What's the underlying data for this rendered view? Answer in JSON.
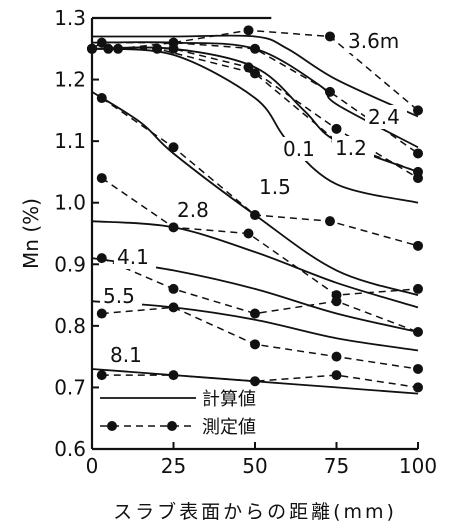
{
  "chart_data": {
    "type": "line",
    "title": "",
    "xlabel": "スラブ表面からの距離(mm)",
    "ylabel": "Mn (%)",
    "xlim": [
      0,
      100
    ],
    "ylim": [
      0.6,
      1.3
    ],
    "x_ticks": [
      "0",
      "25",
      "50",
      "75",
      "100"
    ],
    "y_ticks": [
      "0.6",
      "0.7",
      "0.8",
      "0.9",
      "1.0",
      "1.1",
      "1.2",
      "1.3"
    ],
    "grid": false,
    "legend_position": "bottom-left",
    "legend": [
      {
        "label": "計算値",
        "style": "solid"
      },
      {
        "label": "測定値",
        "style": "dashed-marker"
      }
    ],
    "curve_labels": [
      "3.6m",
      "2.4",
      "1.2",
      "0.1",
      "1.5",
      "2.8",
      "4.1",
      "5.5",
      "8.1"
    ],
    "series": [
      {
        "label": "0.1",
        "kind": "calculated",
        "x": [
          0,
          25,
          50,
          60,
          75,
          100
        ],
        "y": [
          1.25,
          1.24,
          1.17,
          1.1,
          1.03,
          1.0
        ]
      },
      {
        "label": "1.2",
        "kind": "calculated",
        "x": [
          0,
          25,
          50,
          65,
          75,
          100
        ],
        "y": [
          1.25,
          1.25,
          1.22,
          1.15,
          1.1,
          1.05
        ]
      },
      {
        "label": "2.4",
        "kind": "calculated",
        "x": [
          0,
          25,
          50,
          70,
          75,
          100
        ],
        "y": [
          1.26,
          1.26,
          1.25,
          1.19,
          1.16,
          1.09
        ]
      },
      {
        "label": "3.6m",
        "kind": "calculated",
        "x": [
          0,
          25,
          50,
          60,
          75,
          100
        ],
        "y": [
          1.27,
          1.27,
          1.27,
          1.25,
          1.2,
          1.14
        ]
      },
      {
        "label": "1.5",
        "kind": "calculated",
        "x": [
          0,
          15,
          25,
          50,
          75,
          100
        ],
        "y": [
          1.18,
          1.13,
          1.08,
          0.98,
          0.89,
          0.85
        ]
      },
      {
        "label": "2.8",
        "kind": "calculated",
        "x": [
          0,
          25,
          50,
          75,
          100
        ],
        "y": [
          0.97,
          0.96,
          0.92,
          0.87,
          0.83
        ]
      },
      {
        "label": "4.1",
        "kind": "calculated",
        "x": [
          0,
          25,
          50,
          75,
          100
        ],
        "y": [
          0.91,
          0.89,
          0.86,
          0.82,
          0.79
        ]
      },
      {
        "label": "5.5",
        "kind": "calculated",
        "x": [
          0,
          25,
          50,
          75,
          100
        ],
        "y": [
          0.84,
          0.83,
          0.81,
          0.78,
          0.76
        ]
      },
      {
        "label": "8.1",
        "kind": "calculated",
        "x": [
          0,
          25,
          50,
          75,
          100
        ],
        "y": [
          0.73,
          0.72,
          0.71,
          0.7,
          0.69
        ]
      },
      {
        "label": "3.6m",
        "kind": "measured",
        "x": [
          0,
          3,
          25,
          48,
          73,
          100
        ],
        "y": [
          1.25,
          1.26,
          1.26,
          1.28,
          1.27,
          1.15
        ]
      },
      {
        "label": "2.4",
        "kind": "measured",
        "x": [
          0,
          8,
          25,
          50,
          73,
          100
        ],
        "y": [
          1.25,
          1.25,
          1.26,
          1.25,
          1.18,
          1.08
        ]
      },
      {
        "label": "1.2",
        "kind": "measured",
        "x": [
          0,
          5,
          25,
          48,
          75,
          100
        ],
        "y": [
          1.25,
          1.25,
          1.25,
          1.22,
          1.12,
          1.04
        ]
      },
      {
        "label": "0.1",
        "kind": "measured",
        "x": [
          0,
          20,
          50,
          75,
          100
        ],
        "y": [
          1.25,
          1.25,
          1.21,
          1.1,
          1.05
        ]
      },
      {
        "label": "1.5",
        "kind": "measured",
        "x": [
          3,
          25,
          50,
          73,
          100
        ],
        "y": [
          1.17,
          1.09,
          0.98,
          0.97,
          0.93
        ]
      },
      {
        "label": "2.8",
        "kind": "measured",
        "x": [
          3,
          25,
          48,
          75,
          100
        ],
        "y": [
          1.04,
          0.96,
          0.95,
          0.85,
          0.86
        ]
      },
      {
        "label": "4.1",
        "kind": "measured",
        "x": [
          3,
          25,
          50,
          75,
          100
        ],
        "y": [
          0.91,
          0.86,
          0.82,
          0.84,
          0.79
        ]
      },
      {
        "label": "5.5",
        "kind": "measured",
        "x": [
          3,
          25,
          50,
          75,
          100
        ],
        "y": [
          0.82,
          0.83,
          0.77,
          0.75,
          0.73
        ]
      },
      {
        "label": "8.1",
        "kind": "measured",
        "x": [
          3,
          25,
          50,
          75,
          100
        ],
        "y": [
          0.72,
          0.72,
          0.71,
          0.72,
          0.7
        ]
      }
    ]
  }
}
